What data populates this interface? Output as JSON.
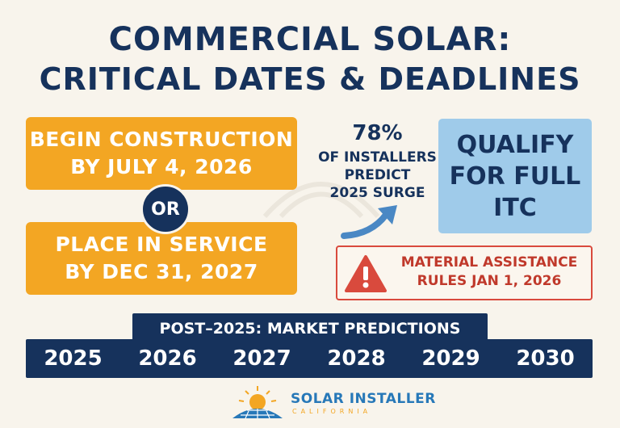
{
  "title": {
    "line1": "COMMERCIAL SOLAR:",
    "line2": "CRITICAL DATES & DEADLINES"
  },
  "options": {
    "construction": {
      "line1": "BEGIN CONSTRUCTION",
      "line2": "BY JULY 4, 2026"
    },
    "or_label": "OR",
    "service": {
      "line1": "PLACE IN SERVICE",
      "line2": "BY DEC 31, 2027"
    }
  },
  "stat": {
    "percent": "78%",
    "line1": "OF INSTALLERS",
    "line2": "PREDICT",
    "line3": "2025 SURGE"
  },
  "qualify": {
    "line1": "QUALIFY",
    "line2": "FOR FULL",
    "line3": "ITC"
  },
  "alert": {
    "icon": "warning-triangle-icon",
    "line1": "MATERIAL ASSISTANCE",
    "line2": "RULES JAN 1, 2026"
  },
  "timeline": {
    "title": "POST–2025: MARKET PREDICTIONS",
    "years": [
      "2025",
      "2026",
      "2027",
      "2028",
      "2029",
      "2030"
    ]
  },
  "logo": {
    "name": "SOLAR INSTALLER",
    "subtitle": "CALIFORNIA",
    "icon": "sun-over-panels-icon"
  },
  "colors": {
    "navy": "#16325c",
    "orange": "#f3a623",
    "light_blue": "#9fcbea",
    "alert_red": "#d94a3d",
    "background": "#f8f4ec"
  }
}
